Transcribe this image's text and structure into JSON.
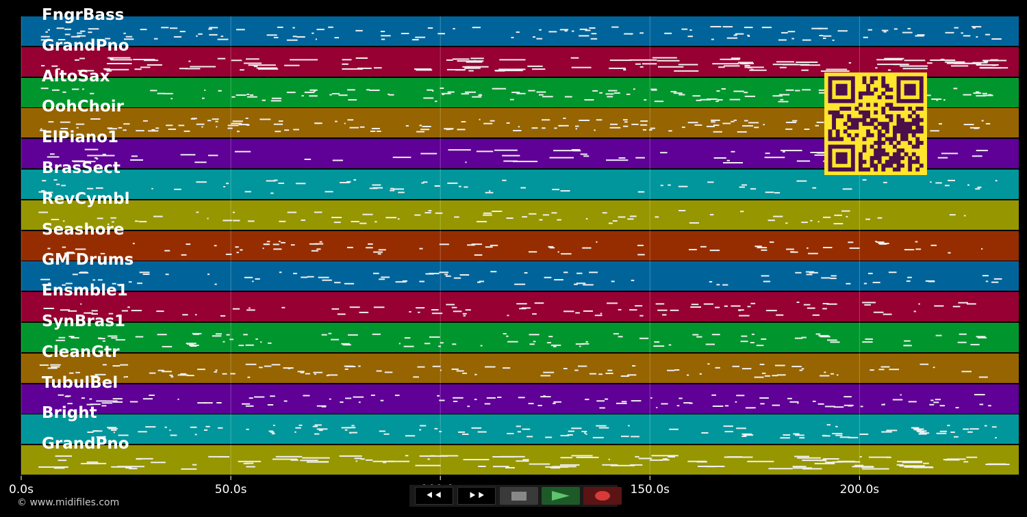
{
  "tracks": [
    {
      "label": "FngrBass",
      "color": "#00649b"
    },
    {
      "label": "GrandPno",
      "color": "#960032"
    },
    {
      "label": "AltoSax",
      "color": "#00962d"
    },
    {
      "label": "OohChoir",
      "color": "#966400"
    },
    {
      "label": "ElPiano1",
      "color": "#5f0096"
    },
    {
      "label": "BrasSect",
      "color": "#00969b"
    },
    {
      "label": "RevCymbl",
      "color": "#969600"
    },
    {
      "label": "Seashore",
      "color": "#962d00"
    },
    {
      "label": "GM Drums",
      "color": "#00649b"
    },
    {
      "label": "Ensmble1",
      "color": "#960032"
    },
    {
      "label": "SynBras1",
      "color": "#00962d"
    },
    {
      "label": "CleanGtr",
      "color": "#966400"
    },
    {
      "label": "TubulBel",
      "color": "#5f0096"
    },
    {
      "label": "Bright",
      "color": "#00969b"
    },
    {
      "label": "GrandPno",
      "color": "#969600"
    }
  ],
  "time_axis": {
    "ticks": [
      "0.0s",
      "50.0s",
      "100.0s",
      "150.0s",
      "200.0s"
    ],
    "tick_seconds": [
      0,
      50,
      100,
      150,
      200
    ],
    "max_seconds": 238
  },
  "controls": {
    "rewind": "⯇⯇",
    "fast_forward": "⯈⯈",
    "colors": {
      "stop": "#888888",
      "play": "#5ec46e",
      "record": "#d83a3a"
    }
  },
  "watermark": "© www.midifiles.com",
  "qr_colors": {
    "bg": "#ffe52b",
    "fg": "#4b0f4b"
  }
}
